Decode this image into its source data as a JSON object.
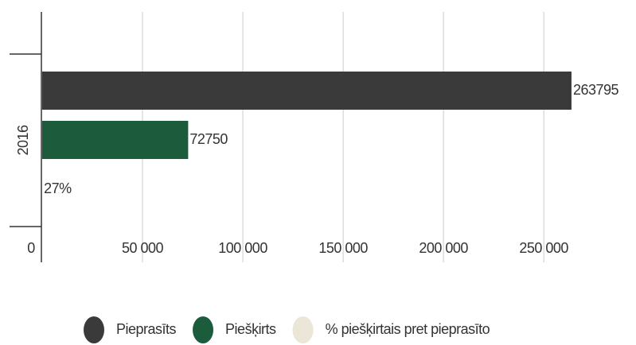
{
  "chart_data": {
    "type": "hbar",
    "categories": [
      "2016"
    ],
    "series": [
      {
        "name": "Pieprasīts",
        "color": "#3a3a3a",
        "values": [
          263795
        ]
      },
      {
        "name": "Piešķirts",
        "color": "#1c5c3c",
        "values": [
          72750
        ]
      },
      {
        "name": "% piešķirtais pret pieprasīto",
        "color": "#ebe6d8",
        "values": [
          27
        ],
        "value_labels": [
          "27%"
        ]
      }
    ],
    "xlim": [
      0,
      290000
    ],
    "xticks": [
      0,
      {
        "value": 50000,
        "label": "50 000"
      },
      {
        "value": 100000,
        "label": "100 000"
      },
      {
        "value": 150000,
        "label": "150 000"
      },
      {
        "value": 200000,
        "label": "200 000"
      },
      {
        "value": 250000,
        "label": "250 000"
      }
    ],
    "grid": true
  }
}
